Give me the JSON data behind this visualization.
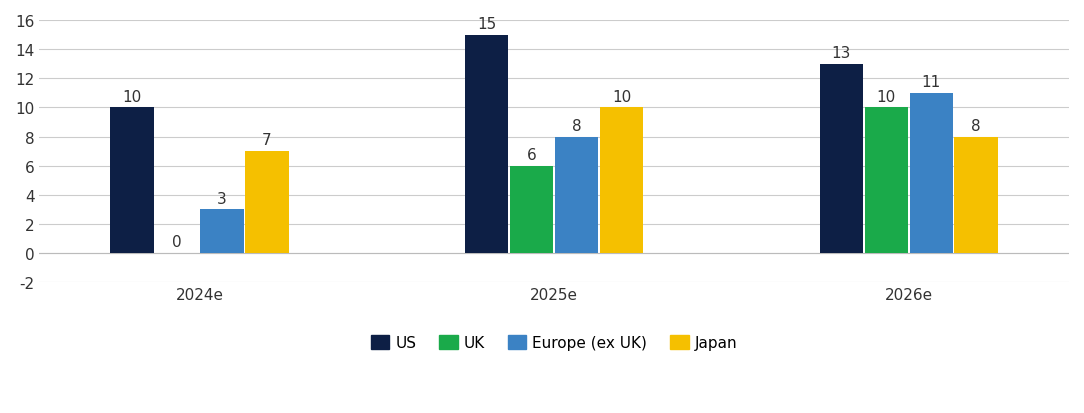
{
  "categories": [
    "2024e",
    "2025e",
    "2026e"
  ],
  "series": {
    "US": [
      10,
      15,
      13
    ],
    "UK": [
      0,
      6,
      10
    ],
    "Europe (ex UK)": [
      3,
      8,
      11
    ],
    "Japan": [
      7,
      10,
      8
    ]
  },
  "colors": {
    "US": "#0d1f45",
    "UK": "#1aaa4a",
    "Europe (ex UK)": "#3b82c4",
    "Japan": "#f5c000"
  },
  "legend_labels": [
    "US",
    "UK",
    "Europe (ex UK)",
    "Japan"
  ],
  "ylim": [
    -2,
    16
  ],
  "yticks": [
    -2,
    0,
    2,
    4,
    6,
    8,
    10,
    12,
    14,
    16
  ],
  "bar_width": 0.55,
  "bar_spacing": 0.02,
  "group_centers": [
    2.0,
    6.5,
    11.0
  ],
  "background_color": "#ffffff",
  "grid_color": "#cccccc",
  "label_fontsize": 11,
  "tick_fontsize": 11,
  "legend_fontsize": 11
}
